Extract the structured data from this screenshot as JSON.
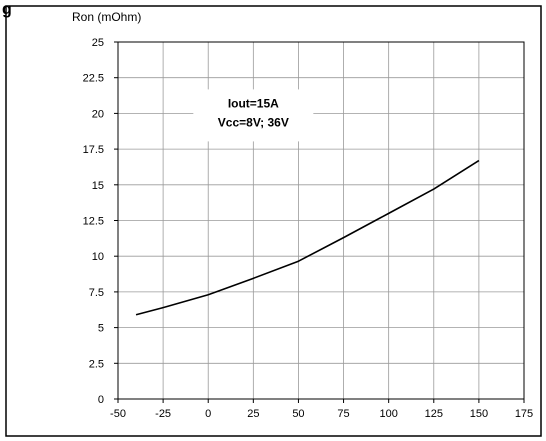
{
  "figure_fragment": "g",
  "chart_data": {
    "type": "line",
    "ylabel": "Ron (mOhm)",
    "xlabel": "",
    "title": "",
    "xlim": [
      -50,
      175
    ],
    "ylim": [
      0,
      25
    ],
    "x_ticks": [
      -50,
      -25,
      0,
      25,
      50,
      75,
      100,
      125,
      150,
      175
    ],
    "y_ticks": [
      0,
      2.5,
      5,
      7.5,
      10,
      12.5,
      15,
      17.5,
      20,
      22.5,
      25
    ],
    "x_tick_labels": [
      "-50",
      "-25",
      "0",
      "25",
      "50",
      "75",
      "100",
      "125",
      "150",
      "175"
    ],
    "y_tick_labels": [
      "0",
      "2.5",
      "5",
      "7.5",
      "10",
      "12.5",
      "15",
      "17.5",
      "20",
      "22.5",
      "25"
    ],
    "grid": true,
    "annotation": {
      "lines": [
        "Iout=15A",
        "Vcc=8V; 36V"
      ],
      "x": 25,
      "y": 20
    },
    "series": [
      {
        "x": [
          -40,
          -25,
          0,
          25,
          50,
          75,
          100,
          125,
          150
        ],
        "values": [
          5.9,
          6.4,
          7.3,
          8.45,
          9.65,
          11.3,
          13.0,
          14.7,
          16.7
        ],
        "color": "#000000"
      }
    ]
  }
}
